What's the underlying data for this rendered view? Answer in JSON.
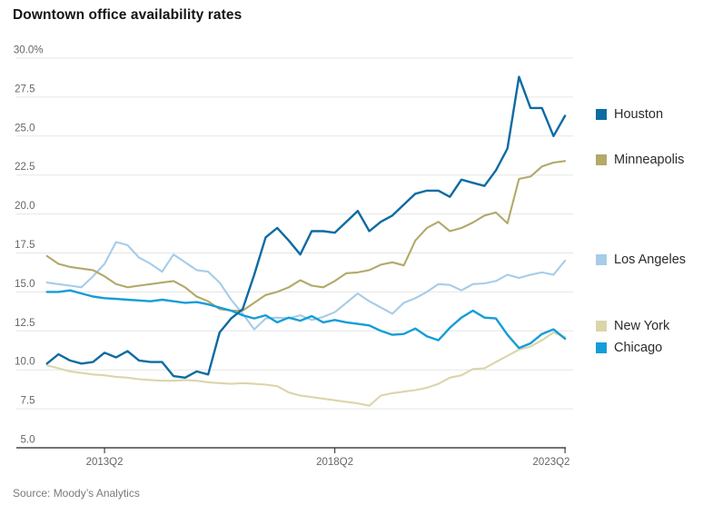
{
  "page": {
    "title": "Downtown office availability rates",
    "source": "Source: Moody’s Analytics"
  },
  "colors": {
    "houston": "#0d6ba3",
    "minneapolis": "#b2a96a",
    "los_angeles": "#a6cce9",
    "new_york": "#dbd5ab",
    "chicago": "#149dd8",
    "gridline": "#e5e5e5",
    "axis": "#222222",
    "tick_label": "#666666",
    "title_text": "#141414",
    "source_text": "#7a7a7a",
    "legend_text": "#2b2b2b"
  },
  "chart_data": {
    "type": "line",
    "title": "Downtown office availability rates",
    "y_unit": "%",
    "ylim": [
      5,
      30
    ],
    "yticks": [
      30,
      27.5,
      25,
      22.5,
      20,
      17.5,
      15,
      12.5,
      10,
      7.5,
      5
    ],
    "ytick_labels": [
      "30.0%",
      "27.5",
      "25.0",
      "22.5",
      "20.0",
      "17.5",
      "15.0",
      "12.5",
      "10.0",
      "7.5",
      "5.0"
    ],
    "xticks": [
      "2013Q2",
      "2018Q2",
      "2023Q2"
    ],
    "x_frequency": "quarterly",
    "grid": "horizontal",
    "legend_position": "right-of-line-ends",
    "quarters": [
      "2012Q1",
      "2012Q2",
      "2012Q3",
      "2012Q4",
      "2013Q1",
      "2013Q2",
      "2013Q3",
      "2013Q4",
      "2014Q1",
      "2014Q2",
      "2014Q3",
      "2014Q4",
      "2015Q1",
      "2015Q2",
      "2015Q3",
      "2015Q4",
      "2016Q1",
      "2016Q2",
      "2016Q3",
      "2016Q4",
      "2017Q1",
      "2017Q2",
      "2017Q3",
      "2017Q4",
      "2018Q1",
      "2018Q2",
      "2018Q3",
      "2018Q4",
      "2019Q1",
      "2019Q2",
      "2019Q3",
      "2019Q4",
      "2020Q1",
      "2020Q2",
      "2020Q3",
      "2020Q4",
      "2021Q1",
      "2021Q2",
      "2021Q3",
      "2021Q4",
      "2022Q1",
      "2022Q2",
      "2022Q3",
      "2022Q4",
      "2023Q1",
      "2023Q2"
    ],
    "series": [
      {
        "name": "Houston",
        "color": "#0d6ba3",
        "stroke_width": 2.4,
        "values": [
          10.4,
          11.0,
          10.6,
          10.4,
          10.5,
          11.1,
          10.8,
          11.2,
          10.6,
          10.5,
          10.5,
          9.6,
          9.5,
          9.9,
          9.7,
          12.4,
          13.3,
          13.9,
          16.1,
          18.5,
          19.1,
          18.3,
          17.4,
          18.9,
          18.9,
          18.8,
          19.5,
          20.2,
          18.9,
          19.5,
          19.9,
          20.6,
          21.3,
          21.5,
          21.5,
          21.1,
          22.2,
          22.0,
          21.8,
          22.8,
          24.2,
          28.8,
          26.8,
          26.8,
          25.0,
          26.3
        ]
      },
      {
        "name": "Minneapolis",
        "color": "#b2a96a",
        "stroke_width": 2.1,
        "values": [
          17.3,
          16.8,
          16.6,
          16.5,
          16.4,
          16.0,
          15.5,
          15.3,
          15.4,
          15.5,
          15.6,
          15.7,
          15.3,
          14.7,
          14.4,
          13.9,
          13.8,
          13.8,
          14.3,
          14.8,
          15.0,
          15.3,
          15.75,
          15.4,
          15.3,
          15.7,
          16.2,
          16.25,
          16.4,
          16.75,
          16.9,
          16.7,
          18.3,
          19.1,
          19.5,
          18.9,
          19.1,
          19.45,
          19.9,
          20.1,
          19.4,
          22.25,
          22.4,
          23.05,
          23.3,
          23.4
        ]
      },
      {
        "name": "Los Angeles",
        "color": "#a6cce9",
        "stroke_width": 2.1,
        "values": [
          15.6,
          15.5,
          15.4,
          15.3,
          16.0,
          16.8,
          18.2,
          18.0,
          17.2,
          16.8,
          16.3,
          17.4,
          16.9,
          16.4,
          16.3,
          15.6,
          14.5,
          13.6,
          12.6,
          13.3,
          13.35,
          13.3,
          13.5,
          13.2,
          13.4,
          13.7,
          14.3,
          14.9,
          14.4,
          14.0,
          13.6,
          14.3,
          14.6,
          15.0,
          15.5,
          15.45,
          15.1,
          15.5,
          15.55,
          15.7,
          16.1,
          15.9,
          16.1,
          16.25,
          16.1,
          17.0
        ]
      },
      {
        "name": "New York",
        "color": "#dbd5ab",
        "stroke_width": 2.1,
        "values": [
          10.3,
          10.1,
          9.9,
          9.8,
          9.7,
          9.65,
          9.55,
          9.5,
          9.4,
          9.35,
          9.3,
          9.3,
          9.35,
          9.3,
          9.2,
          9.15,
          9.1,
          9.15,
          9.1,
          9.05,
          8.95,
          8.55,
          8.35,
          8.25,
          8.15,
          8.05,
          7.95,
          7.85,
          7.7,
          8.35,
          8.5,
          8.6,
          8.7,
          8.85,
          9.1,
          9.5,
          9.65,
          10.05,
          10.1,
          10.5,
          10.9,
          11.3,
          11.5,
          11.9,
          12.4,
          12.1
        ]
      },
      {
        "name": "Chicago",
        "color": "#149dd8",
        "stroke_width": 2.4,
        "values": [
          15.0,
          15.0,
          15.1,
          14.9,
          14.7,
          14.6,
          14.55,
          14.5,
          14.45,
          14.4,
          14.5,
          14.4,
          14.3,
          14.35,
          14.2,
          14.0,
          13.8,
          13.5,
          13.3,
          13.5,
          13.05,
          13.35,
          13.15,
          13.45,
          13.05,
          13.2,
          13.05,
          12.95,
          12.85,
          12.5,
          12.25,
          12.3,
          12.65,
          12.15,
          11.9,
          12.7,
          13.35,
          13.8,
          13.35,
          13.3,
          12.25,
          11.4,
          11.7,
          12.3,
          12.6,
          12.0
        ]
      }
    ]
  }
}
